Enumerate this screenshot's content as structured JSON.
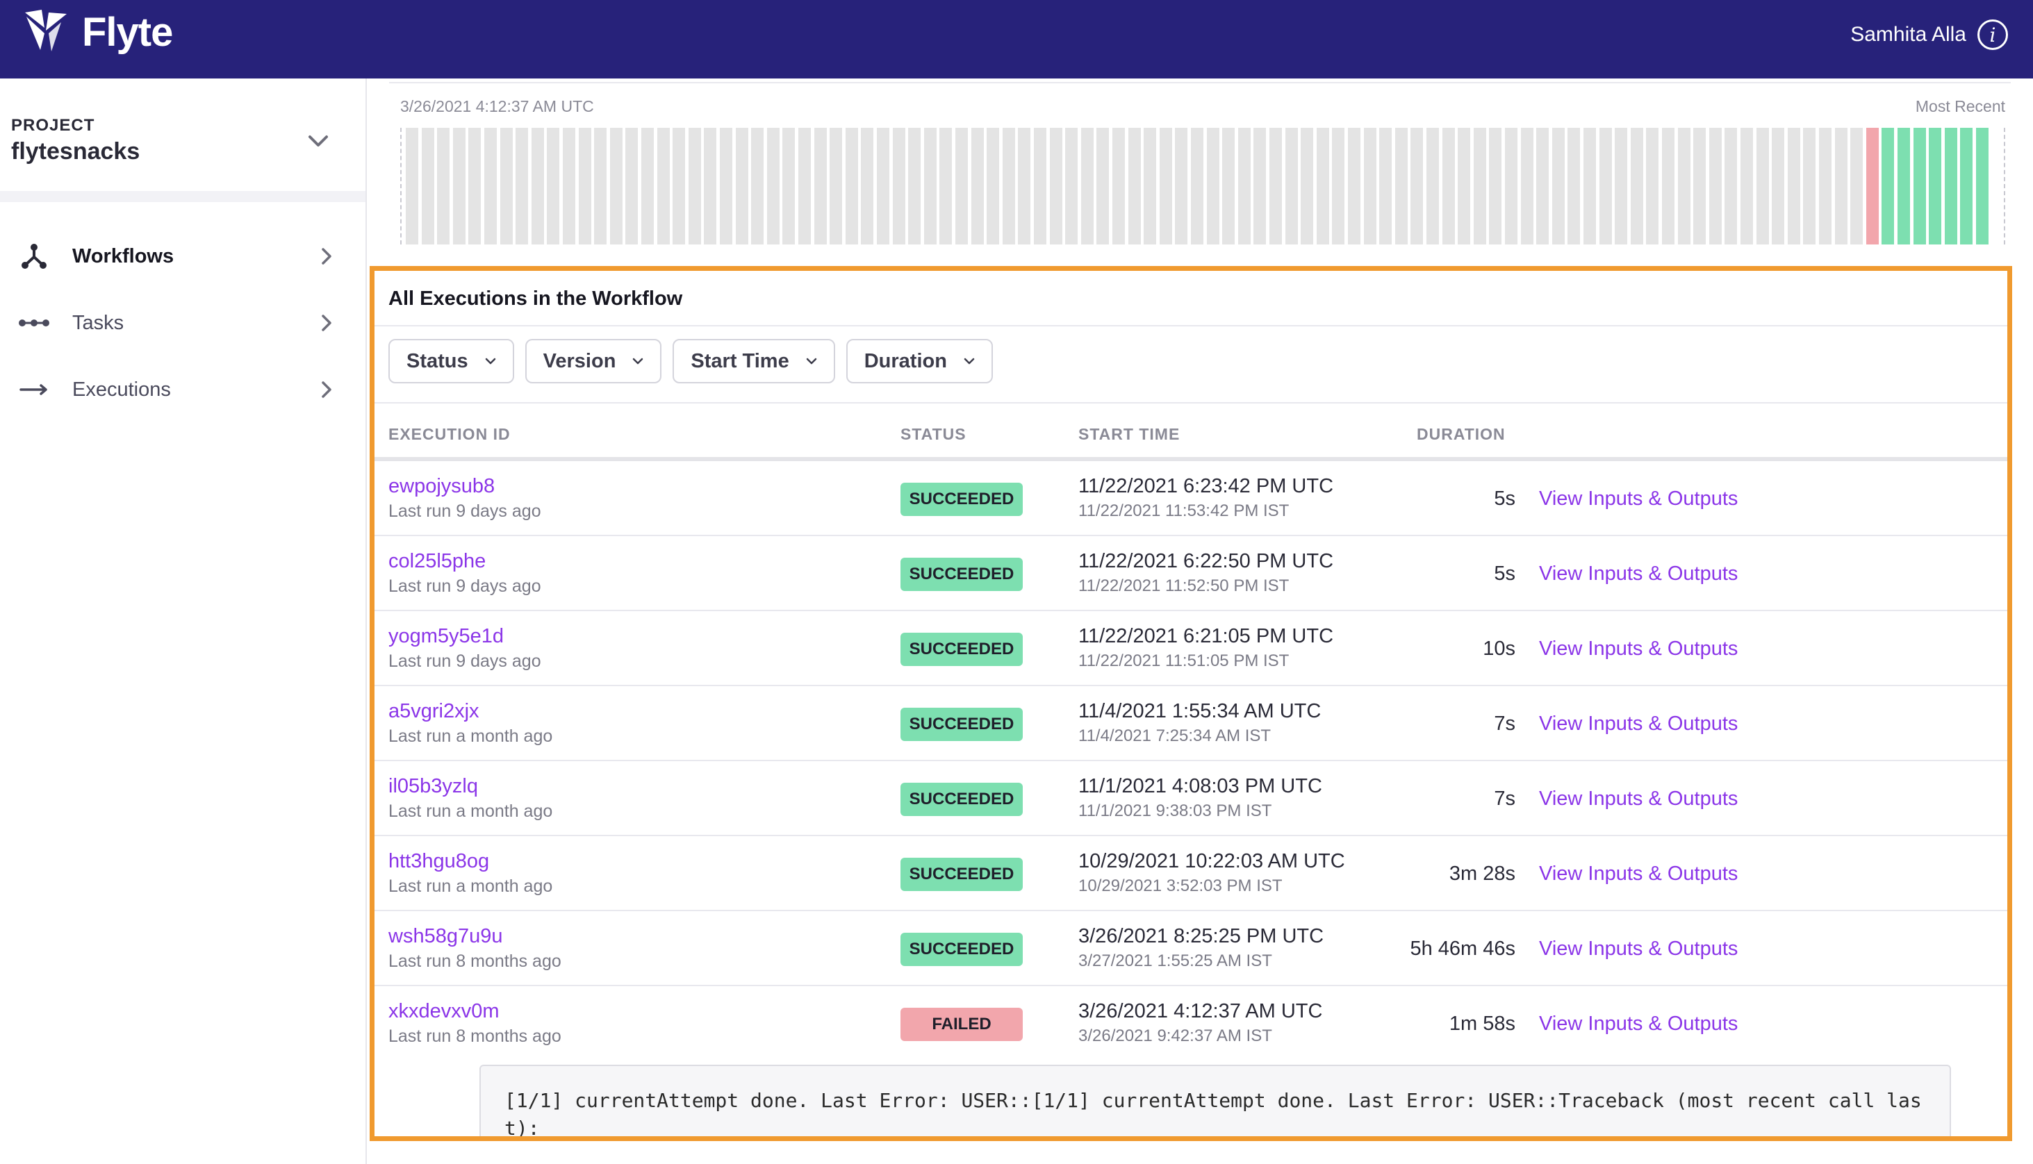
{
  "header": {
    "app_name": "Flyte",
    "user_name": "Samhita Alla",
    "info_icon": "info-icon",
    "colors": {
      "bar": "#27227a"
    }
  },
  "sidebar": {
    "project_label": "PROJECT",
    "project_name": "flytesnacks",
    "items": [
      {
        "label": "Workflows",
        "icon": "workflow-icon",
        "active": true
      },
      {
        "label": "Tasks",
        "icon": "task-icon",
        "active": false
      },
      {
        "label": "Executions",
        "icon": "arrow-right-icon",
        "active": false
      }
    ]
  },
  "timeline": {
    "start_label": "3/26/2021 4:12:37 AM UTC",
    "end_label": "Most Recent",
    "gray_count": 93,
    "failed_count": 1,
    "succeeded_count": 7,
    "colors": {
      "empty": "#e4e4e4",
      "failed": "#f2a6ac",
      "succeeded": "#7ddfb0"
    }
  },
  "executions": {
    "title": "All Executions in the Workflow",
    "filters": [
      "Status",
      "Version",
      "Start Time",
      "Duration"
    ],
    "columns": {
      "id": "EXECUTION ID",
      "status": "STATUS",
      "start": "START TIME",
      "duration": "DURATION"
    },
    "rows": [
      {
        "id": "ewpojysub8",
        "last_run": "Last run 9 days ago",
        "status": "SUCCEEDED",
        "start_utc": "11/22/2021 6:23:42 PM UTC",
        "start_ist": "11/22/2021 11:53:42 PM IST",
        "duration": "5s",
        "link": "View Inputs & Outputs"
      },
      {
        "id": "col25l5phe",
        "last_run": "Last run 9 days ago",
        "status": "SUCCEEDED",
        "start_utc": "11/22/2021 6:22:50 PM UTC",
        "start_ist": "11/22/2021 11:52:50 PM IST",
        "duration": "5s",
        "link": "View Inputs & Outputs"
      },
      {
        "id": "yogm5y5e1d",
        "last_run": "Last run 9 days ago",
        "status": "SUCCEEDED",
        "start_utc": "11/22/2021 6:21:05 PM UTC",
        "start_ist": "11/22/2021 11:51:05 PM IST",
        "duration": "10s",
        "link": "View Inputs & Outputs"
      },
      {
        "id": "a5vgri2xjx",
        "last_run": "Last run a month ago",
        "status": "SUCCEEDED",
        "start_utc": "11/4/2021 1:55:34 AM UTC",
        "start_ist": "11/4/2021 7:25:34 AM IST",
        "duration": "7s",
        "link": "View Inputs & Outputs"
      },
      {
        "id": "il05b3yzlq",
        "last_run": "Last run a month ago",
        "status": "SUCCEEDED",
        "start_utc": "11/1/2021 4:08:03 PM UTC",
        "start_ist": "11/1/2021 9:38:03 PM IST",
        "duration": "7s",
        "link": "View Inputs & Outputs"
      },
      {
        "id": "htt3hgu8og",
        "last_run": "Last run a month ago",
        "status": "SUCCEEDED",
        "start_utc": "10/29/2021 10:22:03 AM UTC",
        "start_ist": "10/29/2021 3:52:03 PM IST",
        "duration": "3m 28s",
        "link": "View Inputs & Outputs"
      },
      {
        "id": "wsh58g7u9u",
        "last_run": "Last run 8 months ago",
        "status": "SUCCEEDED",
        "start_utc": "3/26/2021 8:25:25 PM UTC",
        "start_ist": "3/27/2021 1:55:25 AM IST",
        "duration": "5h 46m 46s",
        "link": "View Inputs & Outputs"
      },
      {
        "id": "xkxdevxv0m",
        "last_run": "Last run 8 months ago",
        "status": "FAILED",
        "start_utc": "3/26/2021 4:12:37 AM UTC",
        "start_ist": "3/26/2021 9:42:37 AM IST",
        "duration": "1m 58s",
        "link": "View Inputs & Outputs"
      }
    ],
    "error_text": "[1/1] currentAttempt done. Last Error: USER::[1/1] currentAttempt done. Last Error: USER::Traceback (most recent call last):",
    "colors": {
      "link": "#8b35e8",
      "highlight_border": "#f09a2f"
    }
  }
}
